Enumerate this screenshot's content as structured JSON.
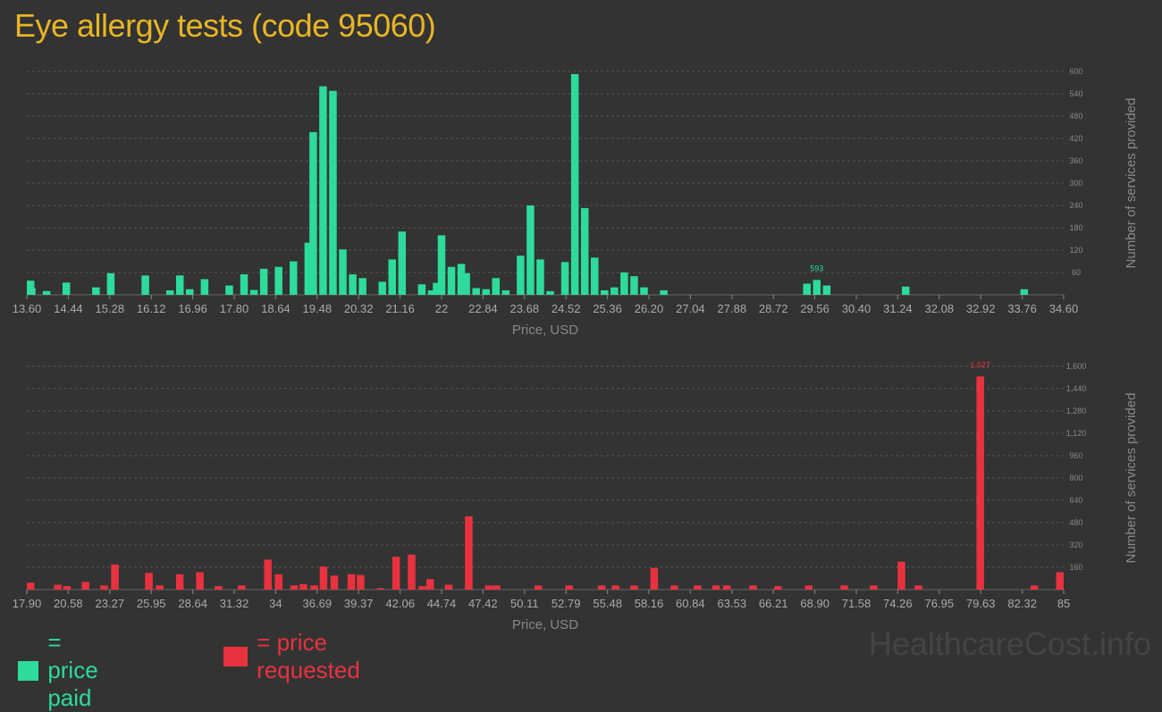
{
  "title": "Eye allergy tests (code 95060)",
  "watermark": "HealthcareCost.info",
  "legend": {
    "paid_label": "= price paid",
    "requested_label": "= price requested",
    "paid_color": "#2ddb9b",
    "requested_color": "#e8323f"
  },
  "chart_data": [
    {
      "type": "bar",
      "name": "price paid",
      "xlabel": "Price, USD",
      "ylabel": "Number of services provided",
      "color": "#2ddb9b",
      "xlim": [
        13.6,
        34.6
      ],
      "ylim": [
        0,
        600
      ],
      "x_ticks": [
        13.6,
        14.44,
        15.28,
        16.12,
        16.96,
        17.8,
        18.64,
        19.48,
        20.32,
        21.16,
        22,
        22.84,
        23.68,
        24.52,
        25.36,
        26.2,
        27.04,
        27.88,
        28.72,
        29.56,
        30.4,
        31.24,
        32.08,
        32.92,
        33.76,
        34.6
      ],
      "x_tick_labels": [
        "13.60",
        "14.44",
        "15.28",
        "16.12",
        "16.96",
        "17.80",
        "18.64",
        "19.48",
        "20.32",
        "21.16",
        "22",
        "22.84",
        "23.68",
        "24.52",
        "25.36",
        "26.20",
        "27.04",
        "27.88",
        "28.72",
        "29.56",
        "30.40",
        "31.24",
        "32.08",
        "32.92",
        "33.76",
        "34.60"
      ],
      "y_ticks": [
        60,
        120,
        180,
        240,
        300,
        360,
        420,
        480,
        540,
        600
      ],
      "y_tick_labels": [
        "60",
        "120",
        "180",
        "240",
        "300",
        "360",
        "420",
        "480",
        "540",
        "600"
      ],
      "peak_label": "593",
      "peak_index": 53,
      "x": [
        13.6,
        13.7,
        14.0,
        14.4,
        15.0,
        15.3,
        16.0,
        16.5,
        16.7,
        16.9,
        17.2,
        17.7,
        18.0,
        18.2,
        18.4,
        18.7,
        19.0,
        19.3,
        19.4,
        19.6,
        19.8,
        20.0,
        20.2,
        20.4,
        20.8,
        21.0,
        21.2,
        21.6,
        21.8,
        21.9,
        22.0,
        22.2,
        22.4,
        22.5,
        22.7,
        22.9,
        23.1,
        23.3,
        23.6,
        23.8,
        24.0,
        24.2,
        24.5,
        24.7,
        24.9,
        25.1,
        25.3,
        25.5,
        25.7,
        25.9,
        26.1,
        26.5,
        29.4,
        29.6,
        29.8,
        31.4,
        33.8
      ],
      "values": [
        38,
        18,
        10,
        33,
        20,
        58,
        52,
        12,
        52,
        15,
        42,
        25,
        55,
        13,
        70,
        75,
        90,
        140,
        437,
        560,
        548,
        122,
        55,
        45,
        35,
        95,
        170,
        28,
        12,
        32,
        160,
        75,
        83,
        58,
        18,
        15,
        45,
        12,
        105,
        240,
        95,
        10,
        88,
        593,
        233,
        100,
        12,
        20,
        60,
        50,
        20,
        12,
        30,
        40,
        25,
        22,
        15
      ]
    },
    {
      "type": "bar",
      "name": "price requested",
      "xlabel": "Price, USD",
      "ylabel": "Number of services provided",
      "color": "#e8323f",
      "xlim": [
        17.9,
        85
      ],
      "ylim": [
        0,
        1600
      ],
      "x_ticks": [
        17.9,
        20.58,
        23.27,
        25.95,
        28.64,
        31.32,
        34,
        36.69,
        39.37,
        42.06,
        44.74,
        47.42,
        50.11,
        52.79,
        55.48,
        58.16,
        60.84,
        63.53,
        66.21,
        68.9,
        71.58,
        74.26,
        76.95,
        79.63,
        82.32,
        85
      ],
      "x_tick_labels": [
        "17.90",
        "20.58",
        "23.27",
        "25.95",
        "28.64",
        "31.32",
        "34",
        "36.69",
        "39.37",
        "42.06",
        "44.74",
        "47.42",
        "50.11",
        "52.79",
        "55.48",
        "58.16",
        "60.84",
        "63.53",
        "66.21",
        "68.90",
        "71.58",
        "74.26",
        "76.95",
        "79.63",
        "82.32",
        "85"
      ],
      "y_ticks": [
        160,
        320,
        480,
        640,
        800,
        960,
        1120,
        1280,
        1440,
        1600
      ],
      "y_tick_labels": [
        "160",
        "320",
        "480",
        "640",
        "800",
        "960",
        "1,120",
        "1,280",
        "1,440",
        "1,600"
      ],
      "peak_label": "1,527",
      "peak_index": 47,
      "x": [
        18.0,
        19.9,
        20.5,
        21.7,
        22.9,
        23.6,
        25.8,
        26.5,
        27.8,
        29.1,
        30.3,
        31.8,
        33.5,
        34.2,
        35.2,
        35.8,
        36.5,
        37.1,
        37.8,
        38.9,
        39.5,
        40.8,
        41.8,
        42.8,
        43.5,
        44.0,
        45.2,
        46.5,
        47.8,
        48.3,
        51.0,
        53.0,
        55.1,
        56.0,
        57.2,
        58.5,
        59.8,
        61.3,
        62.5,
        63.2,
        64.9,
        66.5,
        68.5,
        70.8,
        72.7,
        74.5,
        75.6,
        79.6,
        83.1,
        84.9
      ],
      "values": [
        50,
        35,
        25,
        55,
        30,
        180,
        120,
        30,
        110,
        125,
        25,
        30,
        215,
        110,
        30,
        40,
        30,
        165,
        100,
        110,
        105,
        10,
        235,
        250,
        25,
        75,
        35,
        525,
        30,
        30,
        30,
        30,
        30,
        30,
        30,
        155,
        30,
        30,
        30,
        30,
        30,
        25,
        30,
        30,
        30,
        200,
        30,
        1527,
        30,
        125
      ]
    }
  ]
}
